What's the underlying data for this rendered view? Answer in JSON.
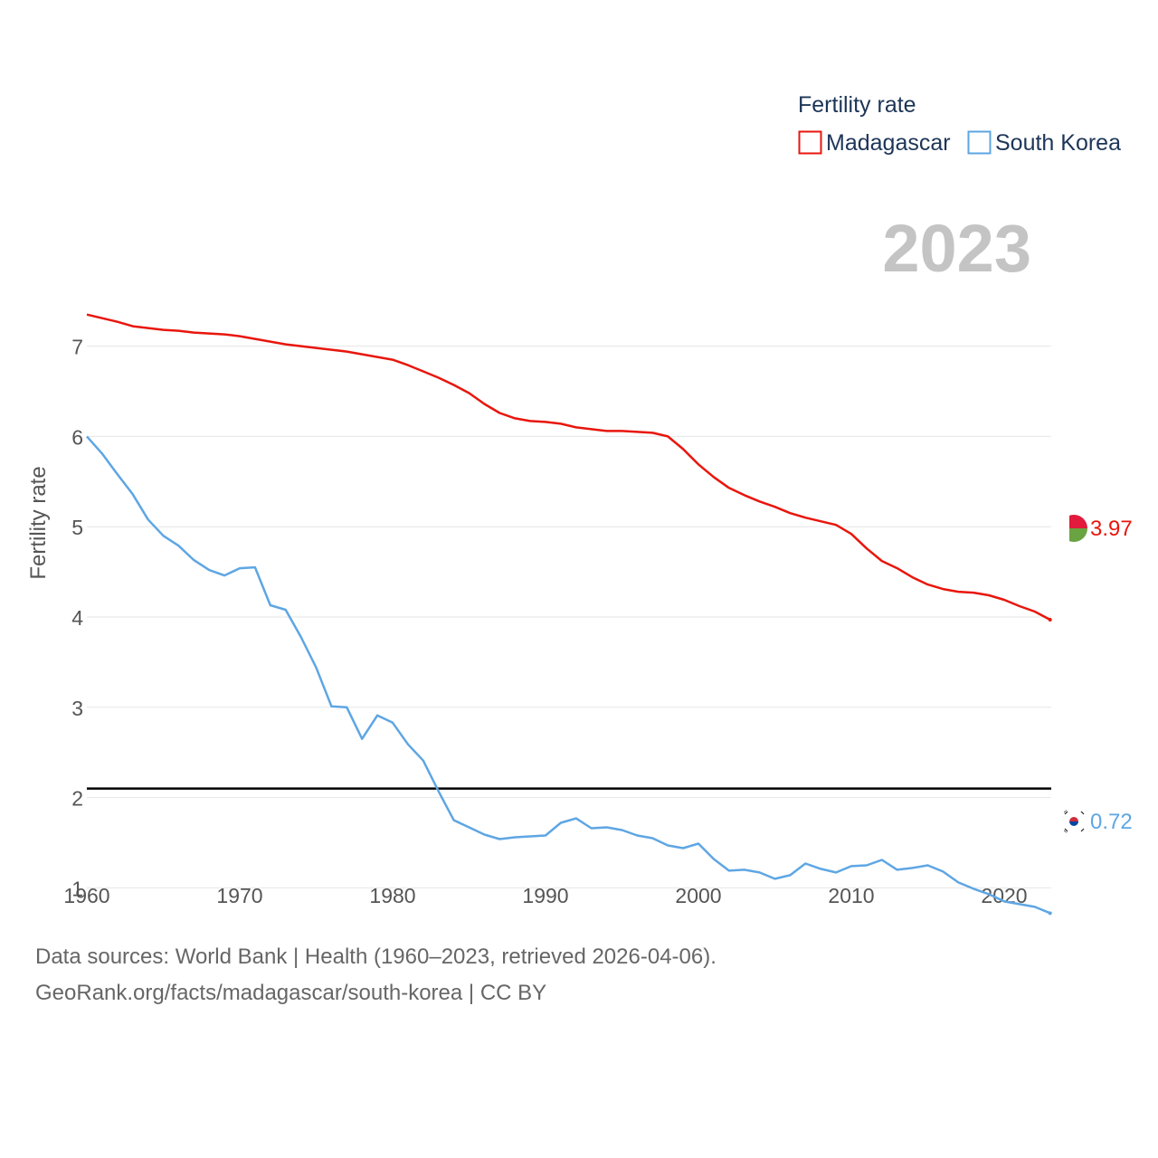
{
  "chart_data": {
    "type": "line",
    "legend": {
      "title": "Fertility rate",
      "placement": "top-right"
    },
    "ylabel": "Fertility rate",
    "xlabel": "",
    "current_year": "2023",
    "xlim": [
      1960,
      2023
    ],
    "ylim": [
      0.4,
      7.6
    ],
    "x_ticks": [
      1960,
      1970,
      1980,
      1990,
      2000,
      2010,
      2020
    ],
    "y_ticks": [
      1,
      2,
      3,
      4,
      5,
      6,
      7
    ],
    "reference_line": {
      "y": 2.1
    },
    "x": [
      1960,
      1961,
      1962,
      1963,
      1964,
      1965,
      1966,
      1967,
      1968,
      1969,
      1970,
      1971,
      1972,
      1973,
      1974,
      1975,
      1976,
      1977,
      1978,
      1979,
      1980,
      1981,
      1982,
      1983,
      1984,
      1985,
      1986,
      1987,
      1988,
      1989,
      1990,
      1991,
      1992,
      1993,
      1994,
      1995,
      1996,
      1997,
      1998,
      1999,
      2000,
      2001,
      2002,
      2003,
      2004,
      2005,
      2006,
      2007,
      2008,
      2009,
      2010,
      2011,
      2012,
      2013,
      2014,
      2015,
      2016,
      2017,
      2018,
      2019,
      2020,
      2021,
      2022,
      2023
    ],
    "series": [
      {
        "name": "Madagascar",
        "color": "#e8160c",
        "end_label": "3.97",
        "values": [
          7.35,
          7.31,
          7.27,
          7.22,
          7.2,
          7.18,
          7.17,
          7.15,
          7.14,
          7.13,
          7.11,
          7.08,
          7.05,
          7.02,
          7.0,
          6.98,
          6.96,
          6.94,
          6.91,
          6.88,
          6.85,
          6.79,
          6.72,
          6.65,
          6.57,
          6.48,
          6.36,
          6.26,
          6.2,
          6.17,
          6.16,
          6.14,
          6.1,
          6.08,
          6.06,
          6.06,
          6.05,
          6.04,
          6.0,
          5.86,
          5.69,
          5.55,
          5.43,
          5.35,
          5.28,
          5.22,
          5.15,
          5.1,
          5.06,
          5.02,
          4.92,
          4.76,
          4.62,
          4.54,
          4.44,
          4.36,
          4.31,
          4.28,
          4.27,
          4.24,
          4.19,
          4.12,
          4.06,
          3.97
        ]
      },
      {
        "name": "South Korea",
        "color": "#5ea6e3",
        "end_label": "0.72",
        "values": [
          6.0,
          5.81,
          5.58,
          5.36,
          5.08,
          4.9,
          4.79,
          4.63,
          4.52,
          4.46,
          4.54,
          4.55,
          4.13,
          4.08,
          3.78,
          3.44,
          3.01,
          3.0,
          2.65,
          2.91,
          2.83,
          2.59,
          2.41,
          2.07,
          1.75,
          1.67,
          1.59,
          1.54,
          1.56,
          1.57,
          1.58,
          1.72,
          1.77,
          1.66,
          1.67,
          1.64,
          1.58,
          1.55,
          1.47,
          1.44,
          1.49,
          1.32,
          1.19,
          1.2,
          1.17,
          1.1,
          1.14,
          1.27,
          1.21,
          1.17,
          1.24,
          1.25,
          1.31,
          1.2,
          1.22,
          1.25,
          1.18,
          1.06,
          0.99,
          0.93,
          0.85,
          0.82,
          0.79,
          0.72
        ]
      }
    ]
  },
  "footer": {
    "line1": "Data sources: World Bank | Health (1960–2023, retrieved 2026-04-06).",
    "line2": "GeoRank.org/facts/madagascar/south-korea | CC BY"
  }
}
